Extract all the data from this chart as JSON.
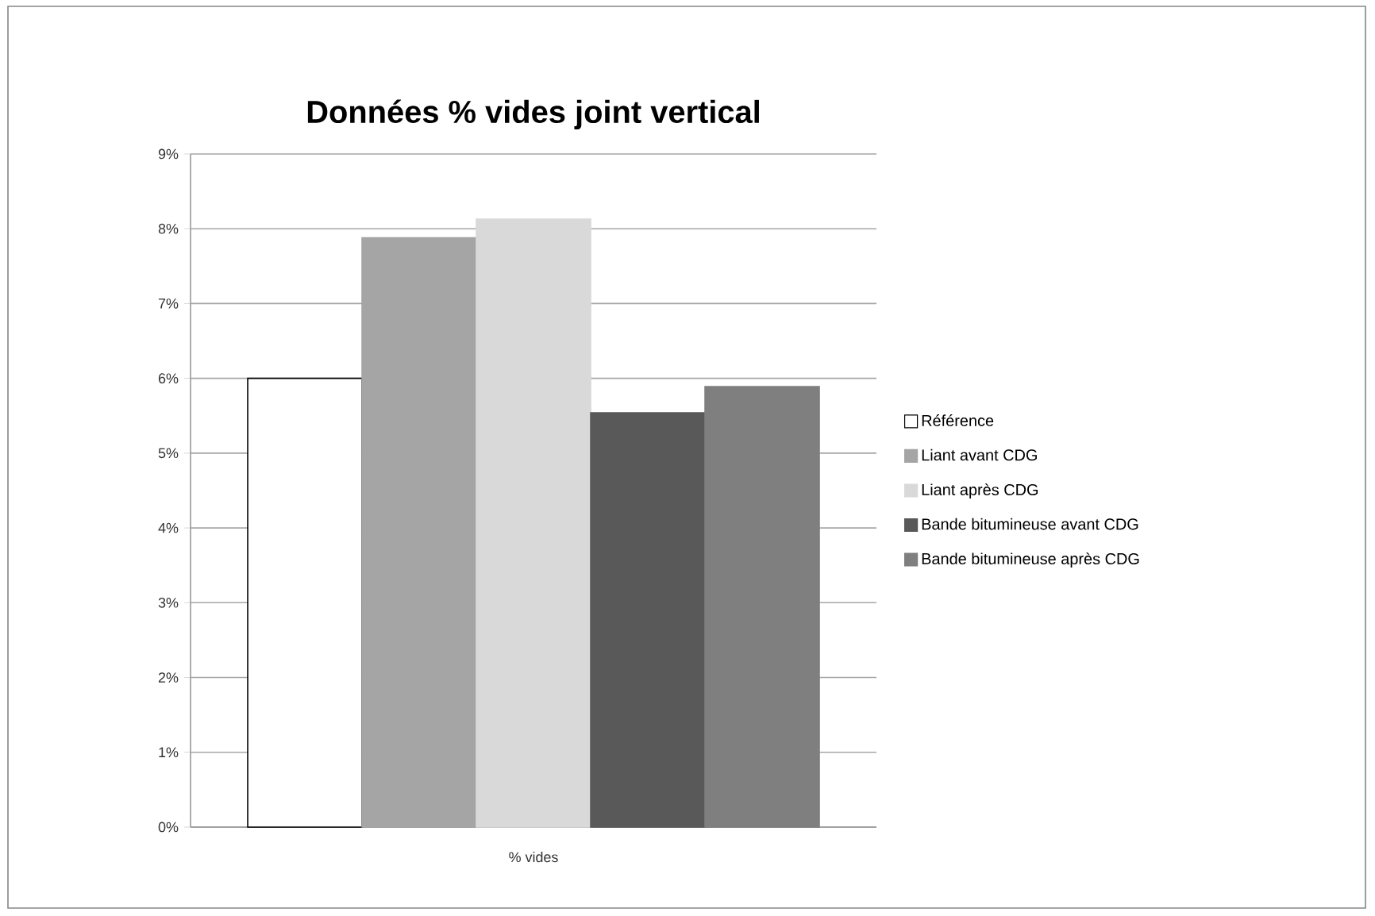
{
  "chart_data": {
    "type": "bar",
    "title": "Données % vides joint vertical",
    "categories": [
      "% vides"
    ],
    "series": [
      {
        "name": "Référence",
        "color": "#ffffff",
        "values": [
          6.0
        ]
      },
      {
        "name": "Liant avant CDG",
        "color": "#a5a5a5",
        "values": [
          7.88
        ]
      },
      {
        "name": "Liant après CDG",
        "color": "#d9d9d9",
        "values": [
          8.13
        ]
      },
      {
        "name": "Bande bitumineuse avant CDG",
        "color": "#595959",
        "values": [
          5.54
        ]
      },
      {
        "name": "Bande bitumineuse après CDG",
        "color": "#7f7f7f",
        "values": [
          5.89
        ]
      }
    ],
    "ylim": [
      0,
      9
    ],
    "yticks": [
      {
        "value": 0,
        "label": "0%"
      },
      {
        "value": 1,
        "label": "1%"
      },
      {
        "value": 2,
        "label": "2%"
      },
      {
        "value": 3,
        "label": "3%"
      },
      {
        "value": 4,
        "label": "4%"
      },
      {
        "value": 5,
        "label": "5%"
      },
      {
        "value": 6,
        "label": "6%"
      },
      {
        "value": 7,
        "label": "7%"
      },
      {
        "value": 8,
        "label": "8%"
      },
      {
        "value": 9,
        "label": "9%"
      }
    ],
    "grid": "y",
    "legend": "right"
  }
}
